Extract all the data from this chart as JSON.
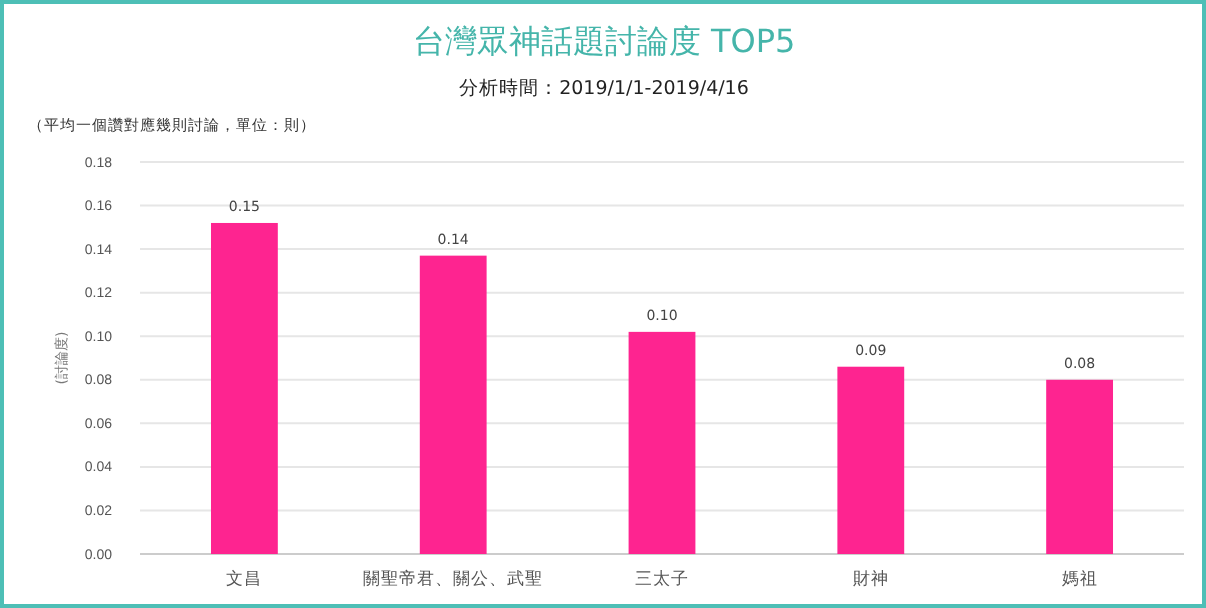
{
  "chart_data": {
    "type": "bar",
    "title": "台灣眾神話題討論度 TOP5",
    "subtitle": "分析時間：2019/1/1-2019/4/16",
    "ylabel": "(討論度)",
    "annotations": [
      "（平均一個讚對應幾則討論，單位：則）"
    ],
    "categories": [
      "文昌",
      "關聖帝君、關公、武聖",
      "三太子",
      "財神",
      "媽祖"
    ],
    "values": [
      0.152,
      0.137,
      0.102,
      0.086,
      0.08
    ],
    "value_labels": [
      "0.15",
      "0.14",
      "0.10",
      "0.09",
      "0.08"
    ],
    "color": "#fe2490",
    "ylim": [
      0,
      0.18
    ],
    "yticks": [
      {
        "value": 0,
        "label": "0.00"
      },
      {
        "value": 0.02,
        "label": "0.02"
      },
      {
        "value": 0.04,
        "label": "0.04"
      },
      {
        "value": 0.06,
        "label": "0.06"
      },
      {
        "value": 0.08,
        "label": "0.08"
      },
      {
        "value": 0.1,
        "label": "0.10"
      },
      {
        "value": 0.12,
        "label": "0.12"
      },
      {
        "value": 0.14,
        "label": "0.14"
      },
      {
        "value": 0.16,
        "label": "0.16"
      },
      {
        "value": 0.18,
        "label": "0.18"
      }
    ],
    "grid": "y"
  }
}
